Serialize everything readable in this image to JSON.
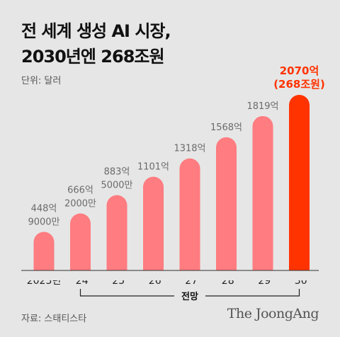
{
  "title_lines": [
    "전 세계 생성 AI 시장,",
    "2030년엔 268조원"
  ],
  "unit_label": "단위: 달러",
  "source_label": "자료: 스태티스타",
  "brand": "The JoongAng",
  "colors": {
    "bar": "#ff7c80",
    "highlight": "#ff3300",
    "label": "#6b6b6b",
    "axis": "#333333"
  },
  "chart_data": {
    "type": "bar",
    "categories": [
      "2023년",
      "’24",
      "’25",
      "’26",
      "’27",
      "’28",
      "’29",
      "’30"
    ],
    "values": [
      448,
      666,
      883,
      1101,
      1318,
      1568,
      1819,
      2070
    ],
    "value_unit": "억 달러",
    "data_labels": [
      [
        "448억",
        "9000만"
      ],
      [
        "666억",
        "2000만"
      ],
      [
        "883억",
        "5000만"
      ],
      [
        "1101억"
      ],
      [
        "1318억"
      ],
      [
        "1568억"
      ],
      [
        "1819억"
      ],
      [
        "2070억",
        "(268조원)"
      ]
    ],
    "highlight_index": 7,
    "bracket_label": "전망",
    "bracket_range": [
      "’24",
      "’30"
    ],
    "title": "전 세계 생성 AI 시장, 2030년엔 268조원",
    "ylabel": "단위: 달러"
  }
}
